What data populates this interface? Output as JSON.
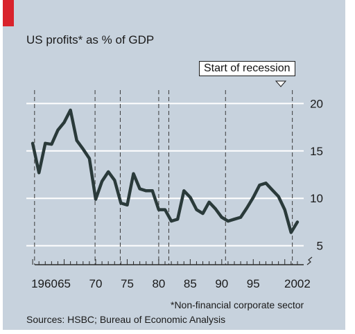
{
  "header": {
    "title": "US profits* as % of GDP",
    "footnote": "*Non-financial corporate sector",
    "source": "Sources: HSBC; Bureau of Economic Analysis"
  },
  "colors": {
    "panel": "#c7d2dd",
    "line": "#2a3a3a",
    "gridline": "#ffffff",
    "accent": "#d9232c"
  },
  "chart_data": {
    "type": "line",
    "title": "US profits* as % of GDP",
    "xlabel": "",
    "ylabel": "",
    "xlim": [
      1959,
      2003
    ],
    "ylim": [
      3,
      22
    ],
    "x_tick_labels": [
      "1960",
      "65",
      "70",
      "75",
      "80",
      "85",
      "90",
      "95",
      "2002"
    ],
    "x_ticks": [
      1960,
      1965,
      1970,
      1975,
      1980,
      1985,
      1990,
      1995,
      2002
    ],
    "y_ticks": [
      5,
      10,
      15,
      20
    ],
    "y_axis_side": "right",
    "grid": true,
    "recession_starts": [
      1960.3,
      1969.9,
      1973.9,
      1980.0,
      1981.6,
      1990.6,
      2001.2
    ],
    "recession_label": "Start of recession",
    "series": [
      {
        "name": "",
        "x": [
          1960,
          1961,
          1962,
          1963,
          1964,
          1965,
          1966,
          1967,
          1968,
          1969,
          1970,
          1971,
          1972,
          1973,
          1974,
          1975,
          1976,
          1977,
          1978,
          1979,
          1980,
          1981,
          1982,
          1983,
          1984,
          1985,
          1986,
          1987,
          1988,
          1989,
          1990,
          1991,
          1992,
          1993,
          1994,
          1995,
          1996,
          1997,
          1998,
          1999,
          2000,
          2001,
          2002
        ],
        "y": [
          15.8,
          12.7,
          15.8,
          15.7,
          17.2,
          18.0,
          19.3,
          16.1,
          15.2,
          14.2,
          9.9,
          11.8,
          12.8,
          11.9,
          9.5,
          9.3,
          12.6,
          11.0,
          10.8,
          10.8,
          8.8,
          8.8,
          7.6,
          7.8,
          10.8,
          10.1,
          8.8,
          8.4,
          9.6,
          8.9,
          8.0,
          7.6,
          7.8,
          8.0,
          9.0,
          10.1,
          11.4,
          11.6,
          10.9,
          10.2,
          8.8,
          6.4,
          7.5
        ]
      }
    ]
  }
}
